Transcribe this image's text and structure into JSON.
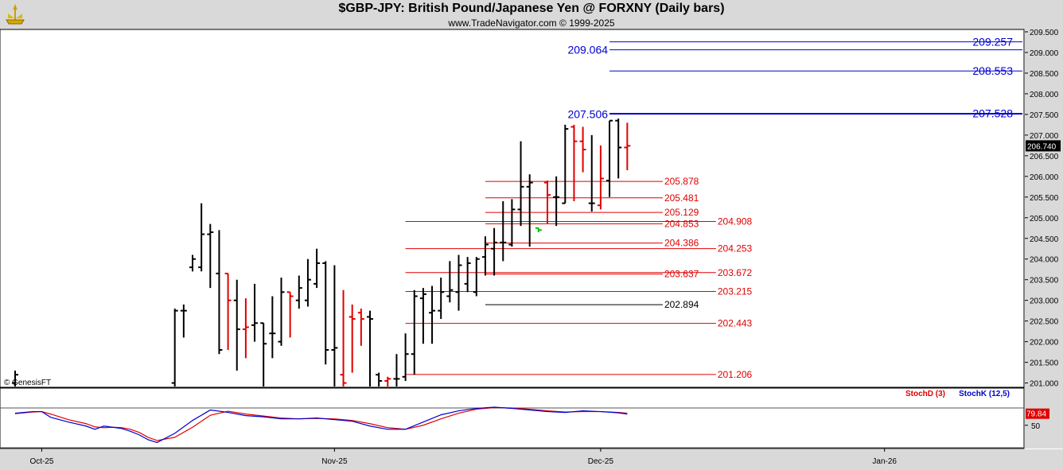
{
  "header": {
    "title": "$GBP-JPY:  British Pound/Japanese Yen @ FORXNY  (Daily bars)",
    "subtitle": "www.TradeNavigator.com © 1999-2025",
    "logo_icon": "trade-navigator-logo-icon"
  },
  "copyright": "© GenesisFT",
  "colors": {
    "up_bar": "#000000",
    "down_bar": "#e00000",
    "doji_bar": "#00c000",
    "level_red": "#e00000",
    "level_blue": "#0000d0",
    "stoch_d": "#e00000",
    "stoch_k": "#0000d0",
    "panel_bg": "#d9d9d9"
  },
  "chart_data": [
    {
      "type": "ohlc",
      "title": "$GBP-JPY",
      "y_ticks": [
        "209.500",
        "209.000",
        "208.500",
        "208.000",
        "207.500",
        "207.000",
        "206.500",
        "206.000",
        "205.500",
        "205.000",
        "204.500",
        "204.000",
        "203.500",
        "203.000",
        "202.500",
        "202.000",
        "201.500",
        "201.000"
      ],
      "ylim": [
        200.9,
        209.55
      ],
      "x_ticks": [
        "Oct-25",
        "Nov-25",
        "Dec-25",
        "Jan-26"
      ],
      "x_tick_days": [
        3,
        36,
        66,
        98
      ],
      "last_price": "206.740",
      "bars": [
        {
          "d": 0,
          "o": 201.0,
          "h": 201.3,
          "l": 200.9,
          "c": 201.2,
          "col": "up"
        },
        {
          "d": 18,
          "o": 201.0,
          "h": 202.8,
          "l": 200.9,
          "c": 202.75,
          "col": "up"
        },
        {
          "d": 19,
          "o": 202.75,
          "h": 202.9,
          "l": 202.1,
          "c": 202.75,
          "col": "up"
        },
        {
          "d": 20,
          "o": 203.8,
          "h": 204.1,
          "l": 203.7,
          "c": 204.0,
          "col": "up"
        },
        {
          "d": 21,
          "o": 203.8,
          "h": 205.35,
          "l": 203.7,
          "c": 204.6,
          "col": "up"
        },
        {
          "d": 22,
          "o": 204.6,
          "h": 204.85,
          "l": 203.3,
          "c": 204.65,
          "col": "up"
        },
        {
          "d": 23,
          "o": 203.65,
          "h": 204.7,
          "l": 201.7,
          "c": 201.8,
          "col": "up"
        },
        {
          "d": 24,
          "o": 203.65,
          "h": 203.65,
          "l": 201.8,
          "c": 203.0,
          "col": "down"
        },
        {
          "d": 25,
          "o": 203.0,
          "h": 203.5,
          "l": 201.3,
          "c": 202.3,
          "col": "up"
        },
        {
          "d": 26,
          "o": 202.3,
          "h": 203.05,
          "l": 201.6,
          "c": 202.35,
          "col": "down"
        },
        {
          "d": 27,
          "o": 202.4,
          "h": 203.4,
          "l": 202.0,
          "c": 202.45,
          "col": "up"
        },
        {
          "d": 28,
          "o": 202.45,
          "h": 202.45,
          "l": 200.9,
          "c": 201.95,
          "col": "up"
        },
        {
          "d": 29,
          "o": 202.2,
          "h": 203.1,
          "l": 201.6,
          "c": 202.2,
          "col": "up"
        },
        {
          "d": 30,
          "o": 202.0,
          "h": 203.55,
          "l": 201.9,
          "c": 203.2,
          "col": "up"
        },
        {
          "d": 31,
          "o": 203.2,
          "h": 203.2,
          "l": 202.1,
          "c": 203.1,
          "col": "down"
        },
        {
          "d": 32,
          "o": 203.0,
          "h": 203.6,
          "l": 202.8,
          "c": 203.3,
          "col": "up"
        },
        {
          "d": 33,
          "o": 203.0,
          "h": 204.0,
          "l": 202.85,
          "c": 203.5,
          "col": "up"
        },
        {
          "d": 34,
          "o": 203.4,
          "h": 204.25,
          "l": 203.3,
          "c": 203.9,
          "col": "up"
        },
        {
          "d": 35,
          "o": 203.9,
          "h": 203.95,
          "l": 201.45,
          "c": 201.8,
          "col": "up"
        },
        {
          "d": 36,
          "o": 201.8,
          "h": 203.85,
          "l": 200.9,
          "c": 201.85,
          "col": "up"
        },
        {
          "d": 37,
          "o": 201.2,
          "h": 203.25,
          "l": 200.9,
          "c": 201.0,
          "col": "down"
        },
        {
          "d": 38,
          "o": 202.6,
          "h": 202.9,
          "l": 201.25,
          "c": 202.55,
          "col": "down"
        },
        {
          "d": 39,
          "o": 202.7,
          "h": 202.8,
          "l": 201.9,
          "c": 202.55,
          "col": "down"
        },
        {
          "d": 40,
          "o": 202.6,
          "h": 202.75,
          "l": 200.9,
          "c": 202.55,
          "col": "up"
        },
        {
          "d": 41,
          "o": 201.2,
          "h": 201.25,
          "l": 200.9,
          "c": 201.05,
          "col": "up"
        },
        {
          "d": 42,
          "o": 201.05,
          "h": 201.15,
          "l": 200.9,
          "c": 201.1,
          "col": "down"
        },
        {
          "d": 43,
          "o": 201.1,
          "h": 201.7,
          "l": 200.9,
          "c": 201.1,
          "col": "up"
        },
        {
          "d": 44,
          "o": 201.15,
          "h": 202.2,
          "l": 201.05,
          "c": 201.7,
          "col": "up"
        },
        {
          "d": 45,
          "o": 201.7,
          "h": 203.25,
          "l": 201.2,
          "c": 203.1,
          "col": "up"
        },
        {
          "d": 46,
          "o": 203.05,
          "h": 203.3,
          "l": 201.95,
          "c": 203.15,
          "col": "up"
        },
        {
          "d": 47,
          "o": 202.7,
          "h": 203.35,
          "l": 201.95,
          "c": 202.75,
          "col": "up"
        },
        {
          "d": 48,
          "o": 202.75,
          "h": 203.55,
          "l": 202.55,
          "c": 203.2,
          "col": "up"
        },
        {
          "d": 49,
          "o": 203.1,
          "h": 203.95,
          "l": 202.95,
          "c": 203.25,
          "col": "up"
        },
        {
          "d": 50,
          "o": 203.2,
          "h": 204.1,
          "l": 202.75,
          "c": 203.85,
          "col": "up"
        },
        {
          "d": 51,
          "o": 203.4,
          "h": 204.05,
          "l": 203.2,
          "c": 203.9,
          "col": "up"
        },
        {
          "d": 52,
          "o": 203.2,
          "h": 204.05,
          "l": 203.1,
          "c": 204.0,
          "col": "up"
        },
        {
          "d": 53,
          "o": 204.05,
          "h": 204.55,
          "l": 203.6,
          "c": 204.35,
          "col": "up"
        },
        {
          "d": 54,
          "o": 204.25,
          "h": 204.75,
          "l": 203.6,
          "c": 204.4,
          "col": "up"
        },
        {
          "d": 55,
          "o": 204.4,
          "h": 205.4,
          "l": 203.95,
          "c": 204.4,
          "col": "up"
        },
        {
          "d": 56,
          "o": 204.35,
          "h": 205.45,
          "l": 204.3,
          "c": 205.2,
          "col": "up"
        },
        {
          "d": 57,
          "o": 205.2,
          "h": 206.85,
          "l": 204.8,
          "c": 205.75,
          "col": "up"
        },
        {
          "d": 58,
          "o": 205.75,
          "h": 206.05,
          "l": 204.3,
          "c": 205.85,
          "col": "up"
        },
        {
          "d": 59,
          "o": 204.75,
          "h": 204.75,
          "l": 204.65,
          "c": 204.7,
          "col": "doji"
        },
        {
          "d": 60,
          "o": 205.85,
          "h": 205.9,
          "l": 204.85,
          "c": 205.55,
          "col": "down"
        },
        {
          "d": 61,
          "o": 205.5,
          "h": 206.0,
          "l": 204.8,
          "c": 205.5,
          "col": "up"
        },
        {
          "d": 62,
          "o": 205.35,
          "h": 207.25,
          "l": 205.35,
          "c": 207.15,
          "col": "up"
        },
        {
          "d": 63,
          "o": 207.2,
          "h": 207.25,
          "l": 205.4,
          "c": 206.85,
          "col": "down"
        },
        {
          "d": 64,
          "o": 206.85,
          "h": 207.2,
          "l": 206.1,
          "c": 206.65,
          "col": "down"
        },
        {
          "d": 65,
          "o": 205.35,
          "h": 207.0,
          "l": 205.15,
          "c": 205.35,
          "col": "up"
        },
        {
          "d": 66,
          "o": 205.3,
          "h": 206.75,
          "l": 205.2,
          "c": 205.95,
          "col": "down"
        },
        {
          "d": 67,
          "o": 205.9,
          "h": 207.35,
          "l": 205.5,
          "c": 207.35,
          "col": "up"
        },
        {
          "d": 68,
          "o": 207.35,
          "h": 207.4,
          "l": 205.95,
          "c": 206.7,
          "col": "up"
        },
        {
          "d": 69,
          "o": 206.7,
          "h": 207.3,
          "l": 206.15,
          "c": 206.74,
          "col": "down"
        }
      ],
      "levels": [
        {
          "value": "209.257",
          "v": 209.257,
          "color": "blue",
          "x0d": 67,
          "x1d": 101,
          "label_pos": "right"
        },
        {
          "value": "209.064",
          "v": 209.064,
          "color": "blue",
          "x0d": 67,
          "x1d": 101,
          "label_pos": "left"
        },
        {
          "value": "208.553",
          "v": 208.553,
          "color": "blue",
          "x0d": 67,
          "x1d": 101,
          "label_pos": "right"
        },
        {
          "value": "207.528",
          "v": 207.528,
          "color": "blue",
          "x0d": 67,
          "x1d": 101,
          "label_pos": "right"
        },
        {
          "value": "207.506",
          "v": 207.506,
          "color": "blue",
          "x0d": 67,
          "x1d": 101,
          "label_pos": "left"
        },
        {
          "value": "205.878",
          "v": 205.878,
          "color": "red",
          "x0d": 53,
          "x1d": 73,
          "label_pos": "end"
        },
        {
          "value": "205.481",
          "v": 205.481,
          "color": "red",
          "x0d": 53,
          "x1d": 73,
          "label_pos": "end"
        },
        {
          "value": "205.129",
          "v": 205.129,
          "color": "red",
          "x0d": 53,
          "x1d": 73,
          "label_pos": "end"
        },
        {
          "value": "204.908",
          "v": 204.908,
          "color": "red",
          "x0d": 44,
          "x1d": 79,
          "label_pos": "end"
        },
        {
          "value": "204.853",
          "v": 204.853,
          "color": "red",
          "x0d": 53,
          "x1d": 73,
          "label_pos": "end"
        },
        {
          "value": "204.386",
          "v": 204.386,
          "color": "red",
          "x0d": 53,
          "x1d": 73,
          "label_pos": "end"
        },
        {
          "value": "204.253",
          "v": 204.253,
          "color": "red",
          "x0d": 44,
          "x1d": 79,
          "label_pos": "end"
        },
        {
          "value": "203.637",
          "v": 203.637,
          "color": "red",
          "x0d": 53,
          "x1d": 73,
          "label_pos": "end"
        },
        {
          "value": "203.672",
          "v": 203.672,
          "color": "red",
          "x0d": 44,
          "x1d": 79,
          "label_pos": "end"
        },
        {
          "value": "203.215",
          "v": 203.215,
          "color": "red",
          "x0d": 44,
          "x1d": 79,
          "label_pos": "end"
        },
        {
          "value": "202.894",
          "v": 202.894,
          "color": "black",
          "x0d": 53,
          "x1d": 73,
          "label_pos": "end"
        },
        {
          "value": "202.443",
          "v": 202.443,
          "color": "red",
          "x0d": 44,
          "x1d": 79,
          "label_pos": "end"
        },
        {
          "value": "201.206",
          "v": 201.206,
          "color": "red",
          "x0d": 44,
          "x1d": 79,
          "label_pos": "end"
        }
      ]
    },
    {
      "type": "line",
      "title": "Stochastic",
      "legend": [
        "StochD (3)",
        "StochK (12,5)"
      ],
      "y_ticks": [
        "50"
      ],
      "ylim": [
        0,
        100
      ],
      "last_value": "79.84",
      "series": [
        {
          "name": "StochK (12,5)",
          "color": "blue",
          "days": [
            0,
            2,
            3,
            4,
            6,
            8,
            9,
            10,
            11,
            12,
            13,
            14,
            15,
            16,
            18,
            20,
            22,
            24,
            26,
            28,
            30,
            32,
            34,
            36,
            38,
            40,
            42,
            44,
            46,
            48,
            50,
            52,
            54,
            56,
            58,
            60,
            62,
            64,
            66,
            68,
            69
          ],
          "values": [
            80,
            84,
            84,
            70,
            58,
            48,
            40,
            48,
            45,
            42,
            35,
            26,
            14,
            7,
            30,
            62,
            88,
            82,
            74,
            71,
            66,
            66,
            68,
            64,
            60,
            48,
            40,
            40,
            58,
            76,
            86,
            92,
            95,
            92,
            88,
            84,
            82,
            86,
            84,
            81,
            78
          ]
        },
        {
          "name": "StochD (3)",
          "color": "red",
          "days": [
            0,
            2,
            3,
            4,
            6,
            8,
            9,
            10,
            11,
            12,
            13,
            14,
            15,
            16,
            18,
            20,
            22,
            24,
            26,
            28,
            30,
            32,
            34,
            36,
            38,
            40,
            42,
            44,
            46,
            48,
            50,
            52,
            54,
            56,
            58,
            60,
            62,
            64,
            66,
            68,
            69
          ],
          "values": [
            79,
            83,
            84,
            78,
            64,
            54,
            46,
            44,
            45,
            44,
            40,
            32,
            20,
            12,
            20,
            45,
            75,
            85,
            78,
            73,
            68,
            66,
            67,
            66,
            62,
            54,
            44,
            40,
            50,
            66,
            80,
            90,
            94,
            93,
            90,
            86,
            83,
            84,
            84,
            82,
            80
          ]
        }
      ]
    }
  ]
}
